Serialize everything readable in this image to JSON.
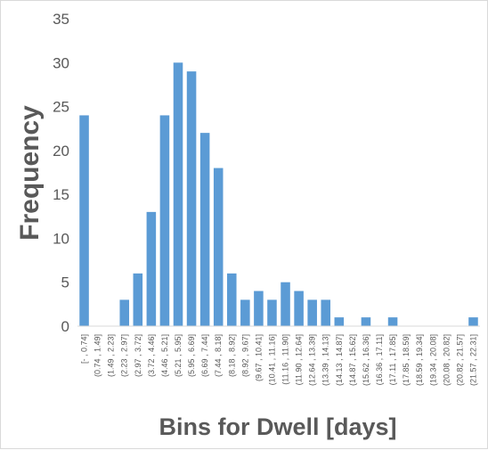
{
  "chart_data": {
    "type": "bar",
    "title": "",
    "xlabel": "Bins for Dwell [days]",
    "ylabel": "Frequency",
    "ylim": [
      0,
      35
    ],
    "y_ticks": [
      0,
      5,
      10,
      15,
      20,
      25,
      30,
      35
    ],
    "grid": false,
    "legend": "none",
    "bar_color": "#5b9bd5",
    "categories": [
      "[- , 0.74]",
      "(0.74 , 1.49]",
      "(1.49 , 2.23]",
      "(2.23 , 2.97]",
      "(2.97 , 3.72]",
      "(3.72 , 4.46]",
      "(4.46 , 5.21]",
      "(5.21 , 5.95]",
      "(5.95 , 6.69]",
      "(6.69 , 7.44]",
      "(7.44 , 8.18]",
      "(8.18 , 8.92]",
      "(8.92 , 9.67]",
      "(9.67 , 10.41]",
      "(10.41 , 11.16]",
      "(11.16 , 11.90]",
      "(11.90 , 12.64]",
      "(12.64 , 13.39]",
      "(13.39 , 14.13]",
      "(14.13 , 14.87]",
      "(14.87 , 15.62]",
      "(15.62 , 16.36]",
      "(16.36 , 17.11]",
      "(17.11 , 17.85]",
      "(17.85 , 18.59]",
      "(18.59 , 19.34]",
      "(19.34 , 20.08]",
      "(20.08 , 20.82]",
      "(20.82 , 21.57]",
      "(21.57 , 22.31]"
    ],
    "values": [
      24,
      0,
      0,
      3,
      6,
      13,
      24,
      30,
      29,
      22,
      18,
      6,
      3,
      4,
      3,
      5,
      4,
      3,
      3,
      1,
      0,
      1,
      0,
      1,
      0,
      0,
      0,
      0,
      0,
      1
    ]
  }
}
